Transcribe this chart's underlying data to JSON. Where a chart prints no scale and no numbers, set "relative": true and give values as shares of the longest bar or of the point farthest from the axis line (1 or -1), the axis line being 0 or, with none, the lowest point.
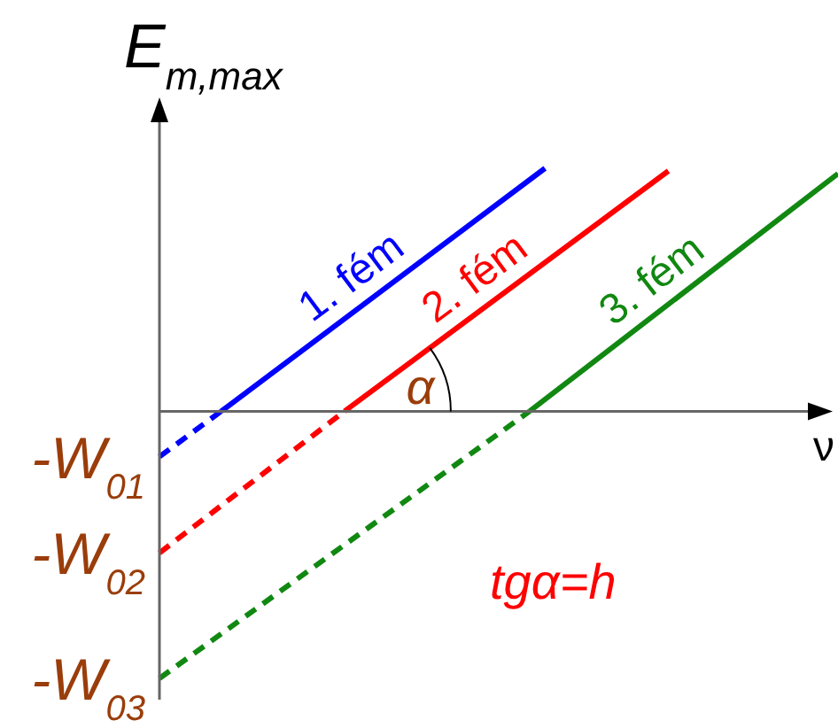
{
  "chart_data": {
    "type": "line",
    "relative": true,
    "xlabel": "ν",
    "ylabel": "E$_{m,max}$",
    "legend": false,
    "marker": "none",
    "line_style": "solid",
    "categories": [
      null,
      null,
      null,
      null,
      null,
      null,
      null,
      null,
      null,
      null,
      null,
      null,
      null,
      null,
      null,
      null,
      null,
      null,
      null,
      null,
      null,
      null,
      null,
      null,
      null,
      null,
      null,
      null,
      null,
      null,
      null,
      null,
      null,
      null,
      null,
      null,
      null,
      null,
      null,
      null,
      null,
      null,
      null,
      null,
      null
    ],
    "series": [
      {
        "name": "1. fém",
        "color": "#0000ff",
        "values": [
          null,
          null,
          null,
          null,
          0,
          null,
          null,
          null,
          null,
          null,
          null,
          null,
          null,
          null,
          null,
          null,
          null,
          null,
          null,
          null,
          null,
          null,
          null,
          null,
          null,
          0.91,
          null,
          null,
          null,
          null,
          null,
          null,
          null,
          null,
          null,
          null,
          null,
          null,
          null,
          null,
          null,
          null,
          null,
          null,
          null
        ]
      },
      {
        "color": "#0000ff",
        "line_style": "dashed",
        "values": [
          -0.17,
          null,
          null,
          null,
          0,
          null,
          null,
          null,
          null,
          null,
          null,
          null,
          null,
          null,
          null,
          null,
          null,
          null,
          null,
          null,
          null,
          null,
          null,
          null,
          null,
          null,
          null,
          null,
          null,
          null,
          null,
          null,
          null,
          null,
          null,
          null,
          null,
          null,
          null,
          null,
          null,
          null,
          null,
          null,
          null
        ]
      },
      {
        "name": "2. fém",
        "color": "#ff0000",
        "values": [
          null,
          null,
          null,
          null,
          null,
          null,
          null,
          null,
          null,
          null,
          null,
          null,
          0,
          null,
          null,
          null,
          null,
          null,
          null,
          null,
          null,
          null,
          null,
          null,
          null,
          null,
          null,
          null,
          null,
          null,
          null,
          null,
          null,
          0.9,
          null,
          null,
          null,
          null,
          null,
          null,
          null,
          null,
          null,
          null,
          null
        ]
      },
      {
        "color": "#ff0000",
        "line_style": "dashed",
        "values": [
          -0.53,
          null,
          null,
          null,
          null,
          null,
          null,
          null,
          null,
          null,
          null,
          null,
          0,
          null,
          null,
          null,
          null,
          null,
          null,
          null,
          null,
          null,
          null,
          null,
          null,
          null,
          null,
          null,
          null,
          null,
          null,
          null,
          null,
          null,
          null,
          null,
          null,
          null,
          null,
          null,
          null,
          null,
          null,
          null,
          null
        ]
      },
      {
        "name": "3. fém",
        "color": "#118811",
        "values": [
          null,
          null,
          null,
          null,
          null,
          null,
          null,
          null,
          null,
          null,
          null,
          null,
          null,
          null,
          null,
          null,
          null,
          null,
          null,
          null,
          null,
          null,
          null,
          null,
          0,
          null,
          null,
          null,
          null,
          null,
          null,
          null,
          null,
          null,
          null,
          null,
          null,
          null,
          null,
          null,
          null,
          null,
          null,
          null,
          0.89
        ]
      },
      {
        "color": "#118811",
        "line_style": "dashed",
        "values": [
          -1,
          null,
          null,
          null,
          null,
          null,
          null,
          null,
          null,
          null,
          null,
          null,
          null,
          null,
          null,
          null,
          null,
          null,
          null,
          null,
          null,
          null,
          null,
          null,
          0,
          null,
          null,
          null,
          null,
          null,
          null,
          null,
          null,
          null,
          null,
          null,
          null,
          null,
          null,
          null,
          null,
          null,
          null,
          null,
          null
        ]
      }
    ],
    "annotations": [
      "-W$_{01}$",
      "-W$_{02}$",
      "-W$_{03}$",
      "α",
      "tgα=h"
    ]
  }
}
